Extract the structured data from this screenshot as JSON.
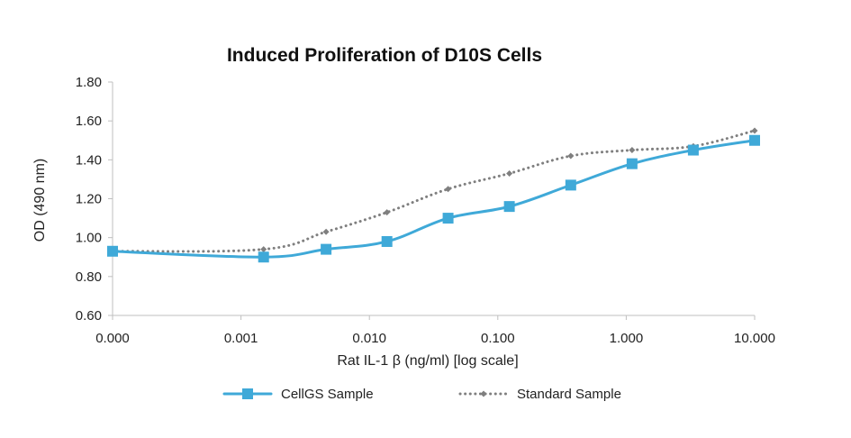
{
  "chart_data": {
    "type": "line",
    "title": "Induced Proliferation of D10S Cells",
    "xlabel": "Rat IL-1 β (ng/ml) [log scale]",
    "ylabel": "OD (490 nm)",
    "x_scale": "log",
    "x_tick_labels": [
      "0.000",
      "0.001",
      "0.010",
      "0.100",
      "1.000",
      "10.000"
    ],
    "y_tick_labels": [
      "0.60",
      "0.80",
      "1.00",
      "1.20",
      "1.40",
      "1.60",
      "1.80"
    ],
    "ylim": [
      0.6,
      1.8
    ],
    "grid": false,
    "legend_position": "bottom",
    "series": [
      {
        "name": "CellGS Sample",
        "color": "#3fa9d8",
        "marker": "square",
        "line_style": "solid",
        "smooth": true,
        "points": [
          {
            "x": 0.0001,
            "y": 0.93
          },
          {
            "x": 0.0015,
            "y": 0.9
          },
          {
            "x": 0.0046,
            "y": 0.94
          },
          {
            "x": 0.0137,
            "y": 0.98
          },
          {
            "x": 0.041,
            "y": 1.1
          },
          {
            "x": 0.123,
            "y": 1.16
          },
          {
            "x": 0.37,
            "y": 1.27
          },
          {
            "x": 1.11,
            "y": 1.38
          },
          {
            "x": 3.33,
            "y": 1.45
          },
          {
            "x": 10.0,
            "y": 1.5
          }
        ]
      },
      {
        "name": "Standard Sample",
        "color": "#7f7f7f",
        "marker": "diamond",
        "line_style": "dotted",
        "smooth": true,
        "points": [
          {
            "x": 0.0001,
            "y": 0.93
          },
          {
            "x": 0.0015,
            "y": 0.94
          },
          {
            "x": 0.0046,
            "y": 1.03
          },
          {
            "x": 0.0137,
            "y": 1.13
          },
          {
            "x": 0.041,
            "y": 1.25
          },
          {
            "x": 0.123,
            "y": 1.33
          },
          {
            "x": 0.37,
            "y": 1.42
          },
          {
            "x": 1.11,
            "y": 1.45
          },
          {
            "x": 3.33,
            "y": 1.47
          },
          {
            "x": 10.0,
            "y": 1.55
          }
        ]
      }
    ]
  }
}
